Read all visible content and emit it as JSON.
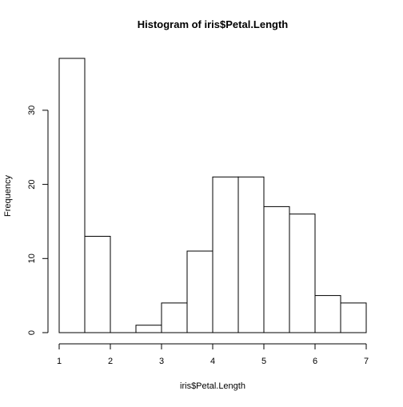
{
  "chart_data": {
    "type": "bar",
    "title": "Histogram of iris$Petal.Length",
    "xlabel": "iris$Petal.Length",
    "ylabel": "Frequency",
    "bin_edges": [
      1,
      1.5,
      2,
      2.5,
      3,
      3.5,
      4,
      4.5,
      5,
      5.5,
      6,
      6.5,
      7
    ],
    "values": [
      37,
      13,
      0,
      1,
      4,
      11,
      21,
      21,
      17,
      16,
      5,
      4
    ],
    "xlim": [
      1,
      7
    ],
    "ylim": [
      0,
      37
    ],
    "xticks": [
      1,
      2,
      3,
      4,
      5,
      6,
      7
    ],
    "yticks": [
      0,
      10,
      20,
      30
    ],
    "grid": false,
    "legend": "none",
    "bar_fill": "#ffffff",
    "bar_stroke": "#000000"
  }
}
